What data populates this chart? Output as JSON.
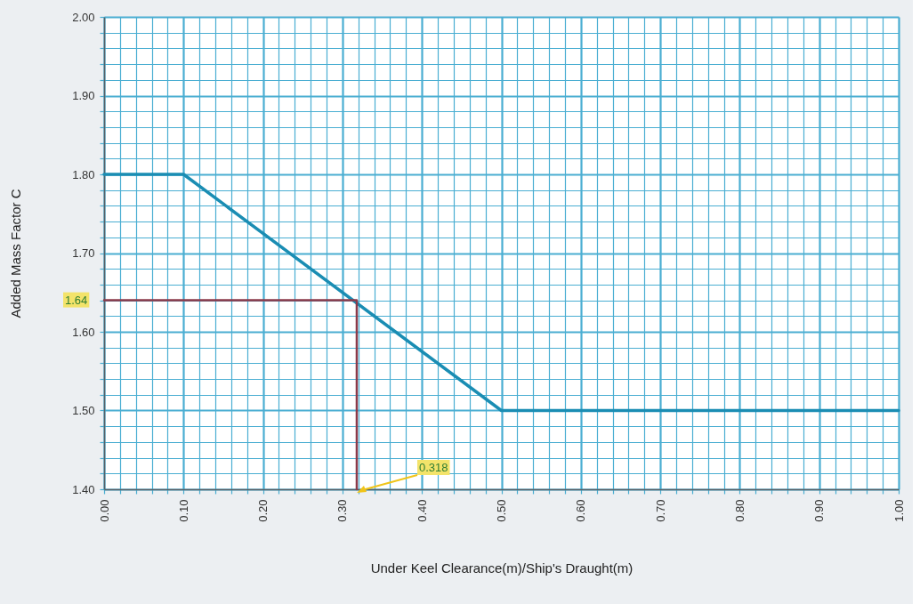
{
  "chart_data": {
    "type": "line",
    "xlabel": "Under Keel Clearance(m)/Ship's Draught(m)",
    "ylabel": "Added Mass Factor C",
    "series": [
      {
        "color": "#1a8db3",
        "x": [
          0,
          0.1,
          0.5,
          1
        ],
        "values": [
          1.8,
          1.8,
          1.5,
          1.5
        ]
      },
      {
        "color": "#8b3a4a",
        "x": [
          0,
          0.318,
          0.318
        ],
        "values": [
          1.64,
          1.64,
          1.4
        ]
      }
    ],
    "annotations": [
      {
        "text": "1.64",
        "x": 0,
        "y": 1.64
      },
      {
        "text": "0.318",
        "x": 0.318,
        "y": 1.4
      }
    ],
    "xlim": [
      0,
      1
    ],
    "ylim": [
      1.4,
      2
    ],
    "xticks": [
      {
        "value": 0,
        "label": "0.00"
      },
      {
        "value": 0.02,
        "label": null
      },
      {
        "value": 0.04,
        "label": null
      },
      {
        "value": 0.06,
        "label": null
      },
      {
        "value": 0.08,
        "label": null
      },
      {
        "value": 0.1,
        "label": "0.10"
      },
      {
        "value": 0.12,
        "label": null
      },
      {
        "value": 0.14,
        "label": null
      },
      {
        "value": 0.16,
        "label": null
      },
      {
        "value": 0.18,
        "label": null
      },
      {
        "value": 0.2,
        "label": "0.20"
      },
      {
        "value": 0.22,
        "label": null
      },
      {
        "value": 0.24,
        "label": null
      },
      {
        "value": 0.26,
        "label": null
      },
      {
        "value": 0.28,
        "label": null
      },
      {
        "value": 0.3,
        "label": "0.30"
      },
      {
        "value": 0.32,
        "label": null
      },
      {
        "value": 0.34,
        "label": null
      },
      {
        "value": 0.36,
        "label": null
      },
      {
        "value": 0.38,
        "label": null
      },
      {
        "value": 0.4,
        "label": "0.40"
      },
      {
        "value": 0.42,
        "label": null
      },
      {
        "value": 0.44,
        "label": null
      },
      {
        "value": 0.46,
        "label": null
      },
      {
        "value": 0.48,
        "label": null
      },
      {
        "value": 0.5,
        "label": "0.50"
      },
      {
        "value": 0.52,
        "label": null
      },
      {
        "value": 0.54,
        "label": null
      },
      {
        "value": 0.56,
        "label": null
      },
      {
        "value": 0.58,
        "label": null
      },
      {
        "value": 0.6,
        "label": "0.60"
      },
      {
        "value": 0.62,
        "label": null
      },
      {
        "value": 0.64,
        "label": null
      },
      {
        "value": 0.66,
        "label": null
      },
      {
        "value": 0.68,
        "label": null
      },
      {
        "value": 0.7,
        "label": "0.70"
      },
      {
        "value": 0.72,
        "label": null
      },
      {
        "value": 0.74,
        "label": null
      },
      {
        "value": 0.76,
        "label": null
      },
      {
        "value": 0.78,
        "label": null
      },
      {
        "value": 0.8,
        "label": "0.80"
      },
      {
        "value": 0.82,
        "label": null
      },
      {
        "value": 0.84,
        "label": null
      },
      {
        "value": 0.86,
        "label": null
      },
      {
        "value": 0.88,
        "label": null
      },
      {
        "value": 0.9,
        "label": "0.90"
      },
      {
        "value": 0.92,
        "label": null
      },
      {
        "value": 0.94,
        "label": null
      },
      {
        "value": 0.96,
        "label": null
      },
      {
        "value": 0.98,
        "label": null
      },
      {
        "value": 1,
        "label": "1.00"
      }
    ],
    "yticks": [
      {
        "value": 1.4,
        "label": "1.40"
      },
      {
        "value": 1.42,
        "label": null
      },
      {
        "value": 1.44,
        "label": null
      },
      {
        "value": 1.46,
        "label": null
      },
      {
        "value": 1.48,
        "label": null
      },
      {
        "value": 1.5,
        "label": "1.50"
      },
      {
        "value": 1.52,
        "label": null
      },
      {
        "value": 1.54,
        "label": null
      },
      {
        "value": 1.56,
        "label": null
      },
      {
        "value": 1.58,
        "label": null
      },
      {
        "value": 1.6,
        "label": "1.60"
      },
      {
        "value": 1.62,
        "label": null
      },
      {
        "value": 1.64,
        "label": null
      },
      {
        "value": 1.66,
        "label": null
      },
      {
        "value": 1.68,
        "label": null
      },
      {
        "value": 1.7,
        "label": "1.70"
      },
      {
        "value": 1.72,
        "label": null
      },
      {
        "value": 1.74,
        "label": null
      },
      {
        "value": 1.76,
        "label": null
      },
      {
        "value": 1.78,
        "label": null
      },
      {
        "value": 1.8,
        "label": "1.80"
      },
      {
        "value": 1.82,
        "label": null
      },
      {
        "value": 1.84,
        "label": null
      },
      {
        "value": 1.86,
        "label": null
      },
      {
        "value": 1.88,
        "label": null
      },
      {
        "value": 1.9,
        "label": "1.90"
      },
      {
        "value": 1.92,
        "label": null
      },
      {
        "value": 1.94,
        "label": null
      },
      {
        "value": 1.96,
        "label": null
      },
      {
        "value": 1.98,
        "label": null
      },
      {
        "value": 2,
        "label": "2.00"
      }
    ],
    "grid": true
  }
}
